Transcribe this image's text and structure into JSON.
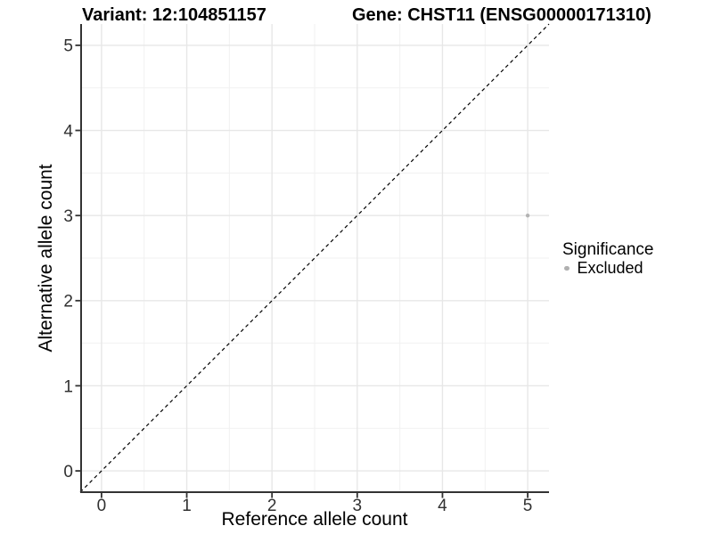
{
  "chart_data": {
    "type": "scatter",
    "title_left": "Variant: 12:104851157",
    "title_right": "Gene: CHST11 (ENSG00000171310)",
    "xlabel": "Reference allele count",
    "ylabel": "Alternative allele count",
    "xlim": [
      -0.25,
      5.25
    ],
    "ylim": [
      -0.25,
      5.25
    ],
    "x_ticks": [
      0,
      1,
      2,
      3,
      4,
      5
    ],
    "y_ticks": [
      0,
      1,
      2,
      3,
      4,
      5
    ],
    "minor_ticks": [
      0.5,
      1.5,
      2.5,
      3.5,
      4.5
    ],
    "grid": true,
    "identity_line": {
      "slope": 1,
      "intercept": 0,
      "style": "dashed",
      "color": "#000000"
    },
    "points": [
      {
        "x": 5,
        "y": 3,
        "significance": "Excluded",
        "color": "#b3b3b3",
        "radius": 2.2
      }
    ],
    "legend": {
      "title": "Significance",
      "position": "right",
      "entries": [
        {
          "label": "Excluded",
          "color": "#b0b0b0"
        }
      ]
    },
    "colors": {
      "axis_line": "#333333",
      "tick_mark": "#333333",
      "tick_text": "#303030",
      "grid_major": "#e7e7e7",
      "grid_minor": "#f1f1f1",
      "background": "#ffffff"
    }
  }
}
